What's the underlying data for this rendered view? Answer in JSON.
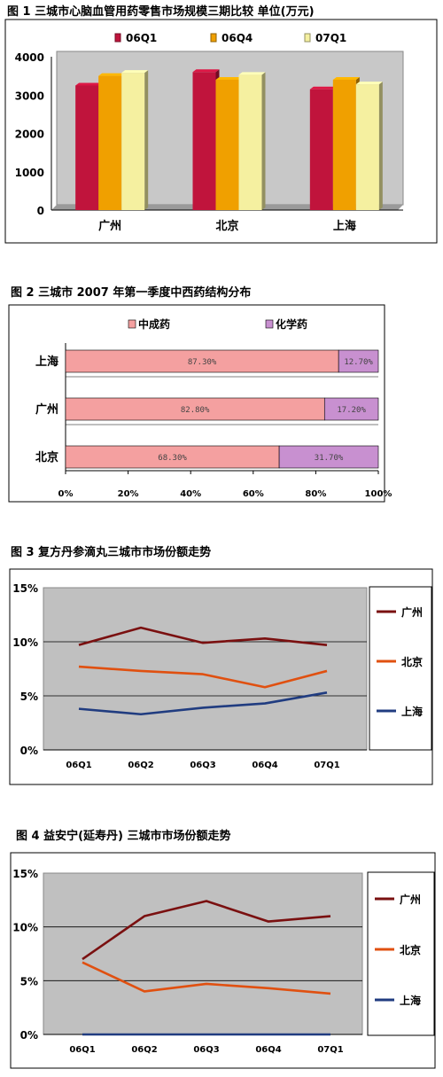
{
  "chart_data": [
    {
      "type": "bar",
      "title": "图 1   三城市心脑血管用药零售市场规模三期比较   单位(万元)",
      "categories": [
        "广州",
        "北京",
        "上海"
      ],
      "series": [
        {
          "name": "06Q1",
          "values": [
            3250,
            3600,
            3150
          ],
          "color": "#c0143c"
        },
        {
          "name": "06Q4",
          "values": [
            3500,
            3400,
            3400
          ],
          "color": "#f0a000"
        },
        {
          "name": "07Q1",
          "values": [
            3580,
            3530,
            3280
          ],
          "color": "#f5f0a0"
        }
      ],
      "ylim": [
        0,
        4000
      ],
      "yticks": [
        "0",
        "1000",
        "2000",
        "3000",
        "4000"
      ],
      "grid": false,
      "legend": "top"
    },
    {
      "type": "bar",
      "title": "图 2   三城市 2007 年第一季度中西药结构分布",
      "categories": [
        "上海",
        "广州",
        "北京"
      ],
      "series": [
        {
          "name": "中成药",
          "values": [
            87.3,
            82.8,
            68.3
          ],
          "labels": [
            "87.30%",
            "82.80%",
            "68.30%"
          ],
          "color": "#f4a0a0"
        },
        {
          "name": "化学药",
          "values": [
            12.7,
            17.2,
            31.7
          ],
          "labels": [
            "12.70%",
            "17.20%",
            "31.70%"
          ],
          "color": "#c890d0"
        }
      ],
      "xlim": [
        0,
        100
      ],
      "xticks": [
        "0%",
        "20%",
        "40%",
        "60%",
        "80%",
        "100%"
      ],
      "orientation": "horizontal-stacked",
      "legend": "top"
    },
    {
      "type": "line",
      "title": "图 3      复方丹参滴丸三城市市场份额走势",
      "categories": [
        "06Q1",
        "06Q2",
        "06Q3",
        "06Q4",
        "07Q1"
      ],
      "series": [
        {
          "name": "广州",
          "values": [
            9.7,
            11.3,
            9.9,
            10.3,
            9.7
          ],
          "color": "#7a1010"
        },
        {
          "name": "北京",
          "values": [
            7.7,
            7.3,
            7.0,
            5.8,
            7.3
          ],
          "color": "#e05010"
        },
        {
          "name": "上海",
          "values": [
            3.8,
            3.3,
            3.9,
            4.3,
            5.3
          ],
          "color": "#203c80"
        }
      ],
      "ylim": [
        0,
        15
      ],
      "yticks": [
        "0%",
        "5%",
        "10%",
        "15%"
      ],
      "legend": "right"
    },
    {
      "type": "line",
      "title": "图 4     益安宁(延寿丹) 三城市市场份额走势",
      "categories": [
        "06Q1",
        "06Q2",
        "06Q3",
        "06Q4",
        "07Q1"
      ],
      "series": [
        {
          "name": "广州",
          "values": [
            7.0,
            11.0,
            12.4,
            10.5,
            11.0
          ],
          "color": "#7a1010"
        },
        {
          "name": "北京",
          "values": [
            6.7,
            4.0,
            4.7,
            4.3,
            3.8
          ],
          "color": "#e05010"
        },
        {
          "name": "上海",
          "values": [
            0.0,
            0.0,
            0.0,
            0.0,
            0.0
          ],
          "color": "#203c80"
        }
      ],
      "ylim": [
        0,
        15
      ],
      "yticks": [
        "0%",
        "5%",
        "10%",
        "15%"
      ],
      "legend": "right"
    }
  ]
}
